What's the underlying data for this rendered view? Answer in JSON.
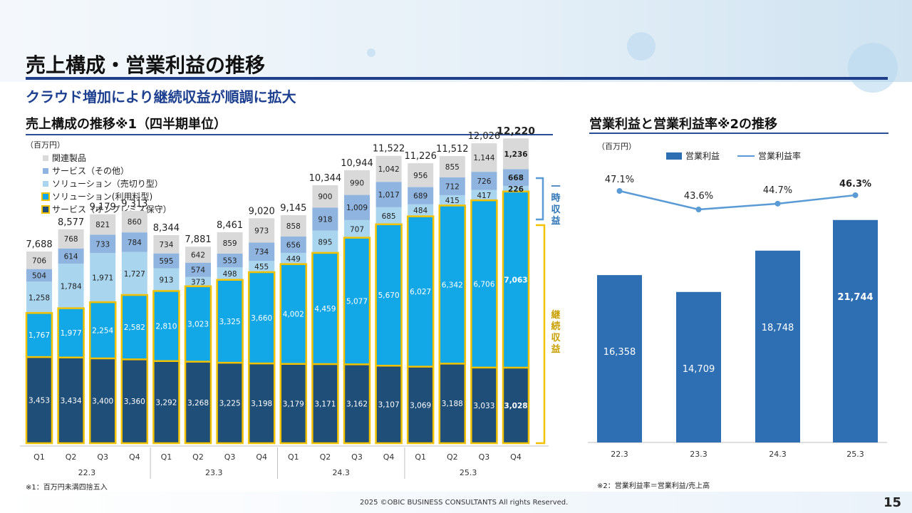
{
  "header": {
    "title": "売上構成・営業利益の推移",
    "subtitle": "クラウド増加により継続収益が順調に拡大"
  },
  "left_section": {
    "title": "売上構成の推移※1（四半期単位）",
    "unit": "（百万円）",
    "footnote": "※1：百万円未満四捨五入",
    "brace_top_label": "一時収益",
    "brace_bottom_label": "継続収益"
  },
  "right_section": {
    "title": "営業利益と営業利益率※2の推移",
    "unit": "（百万円）",
    "footnote": "※2：営業利益率＝営業利益/売上高"
  },
  "footer": {
    "copyright": "2025 ©OBIC BUSINESS CONSULTANTS All rights Reserved.",
    "page": "15"
  },
  "colors": {
    "onprem": "#1f4e79",
    "subscription": "#12a8e8",
    "license": "#a9d5ef",
    "service_other": "#8fb4df",
    "related": "#d9d9d9",
    "recurring_outline": "#f2c200",
    "op_bar": "#2e6fb3",
    "op_line": "#5b9bd5"
  },
  "chart_data": [
    {
      "type": "bar",
      "stacked": true,
      "title": "売上構成の推移※1（四半期単位）",
      "ylabel": "（百万円）",
      "categories": [
        "Q1",
        "Q2",
        "Q3",
        "Q4",
        "Q1",
        "Q2",
        "Q3",
        "Q4",
        "Q1",
        "Q2",
        "Q3",
        "Q4",
        "Q1",
        "Q2",
        "Q3",
        "Q4"
      ],
      "fiscal_years": [
        {
          "label": "22.3",
          "start": 0,
          "end": 3
        },
        {
          "label": "23.3",
          "start": 4,
          "end": 7
        },
        {
          "label": "24.3",
          "start": 8,
          "end": 11
        },
        {
          "label": "25.3",
          "start": 12,
          "end": 15
        }
      ],
      "series": [
        {
          "name": "サービス（オンプレミス保守）",
          "key": "onprem",
          "values": [
            3453,
            3434,
            3400,
            3360,
            3292,
            3268,
            3225,
            3198,
            3179,
            3171,
            3162,
            3107,
            3069,
            3188,
            3033,
            3028
          ]
        },
        {
          "name": "ソリューション(利用料型)",
          "key": "subscription",
          "values": [
            1767,
            1977,
            2254,
            2582,
            2810,
            3023,
            3325,
            3660,
            4002,
            4459,
            5077,
            5670,
            6027,
            6342,
            6706,
            7063
          ]
        },
        {
          "name": "ソリューション（売切り型）",
          "key": "license",
          "values": [
            1258,
            1784,
            1971,
            1727,
            913,
            373,
            498,
            455,
            449,
            895,
            707,
            685,
            484,
            415,
            417,
            226
          ]
        },
        {
          "name": "サービス（その他）",
          "key": "service_other",
          "values": [
            504,
            614,
            733,
            784,
            595,
            574,
            553,
            734,
            656,
            918,
            1009,
            1017,
            689,
            712,
            726,
            668
          ]
        },
        {
          "name": "関連製品",
          "key": "related",
          "values": [
            706,
            768,
            821,
            860,
            734,
            642,
            859,
            973,
            858,
            900,
            990,
            1042,
            956,
            855,
            1144,
            1236
          ]
        }
      ],
      "totals": [
        7688,
        8577,
        9179,
        9313,
        8344,
        7881,
        8461,
        9020,
        9145,
        10344,
        10944,
        11522,
        11226,
        11512,
        12026,
        12220
      ],
      "ylim": [
        0,
        13000
      ]
    },
    {
      "type": "bar+line",
      "title": "営業利益と営業利益率※2の推移",
      "ylabel": "（百万円）",
      "categories": [
        "22.3",
        "23.3",
        "24.3",
        "25.3"
      ],
      "series": [
        {
          "name": "営業利益",
          "type": "bar",
          "values": [
            16358,
            14709,
            18748,
            21744
          ]
        },
        {
          "name": "営業利益率",
          "type": "line",
          "values": [
            47.1,
            43.6,
            44.7,
            46.3
          ],
          "labels": [
            "47.1%",
            "43.6%",
            "44.7%",
            "46.3%"
          ]
        }
      ],
      "ylim": [
        0,
        25000
      ]
    }
  ]
}
